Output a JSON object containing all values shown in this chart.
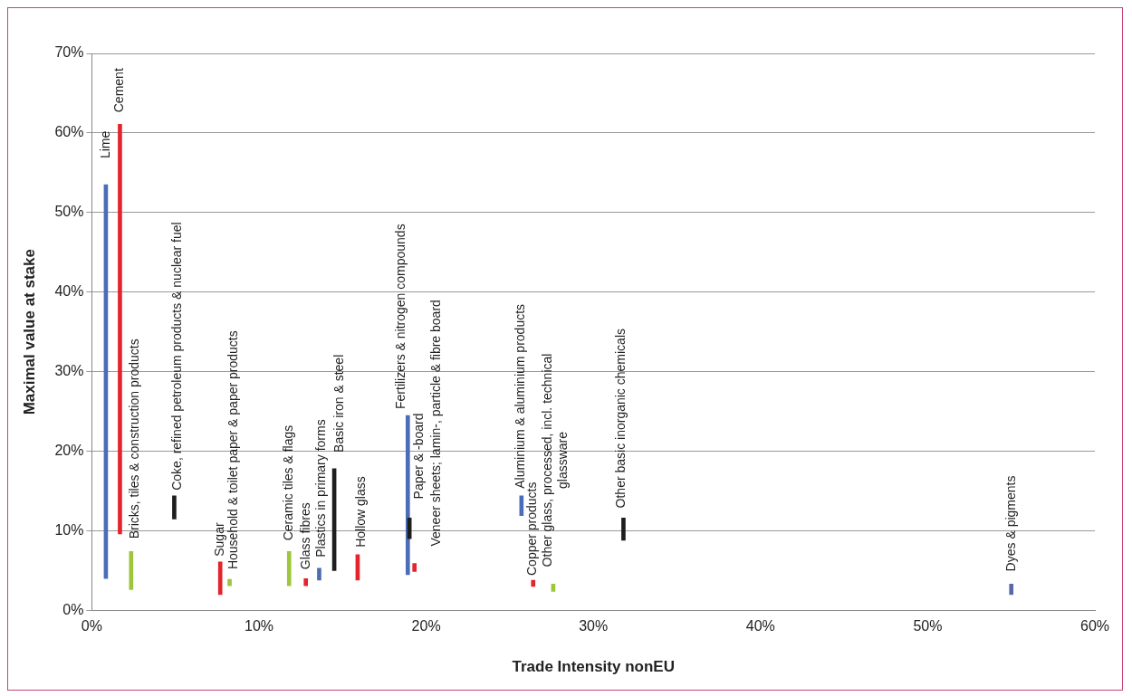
{
  "chart_data": {
    "type": "bar",
    "xlabel": "Trade Intensity nonEU",
    "ylabel": "Maximal value at stake",
    "x": [
      0.84,
      1.68,
      2.35,
      4.93,
      7.68,
      8.24,
      11.8,
      12.8,
      13.6,
      14.5,
      15.9,
      18.9,
      19.0,
      19.3,
      25.7,
      26.4,
      27.6,
      31.8,
      55.0
    ],
    "base": [
      4.0,
      9.6,
      2.6,
      11.5,
      2.0,
      3.1,
      3.1,
      3.1,
      3.8,
      5.0,
      3.8,
      4.5,
      9.0,
      4.9,
      11.9,
      3.0,
      2.4,
      8.8,
      2.0
    ],
    "values": [
      49.5,
      51.5,
      4.8,
      2.9,
      4.1,
      0.8,
      4.3,
      0.9,
      1.5,
      12.8,
      3.2,
      20.0,
      2.6,
      1.0,
      2.5,
      0.8,
      0.9,
      2.8,
      1.3
    ],
    "colors": [
      "#4a6db5",
      "#e3242b",
      "#9ec63c",
      "#1e1e1e",
      "#e3242b",
      "#9ec63c",
      "#9ec63c",
      "#e3242b",
      "#4a6db5",
      "#1e1e1e",
      "#e3242b",
      "#4a6db5",
      "#1e1e1e",
      "#e3242b",
      "#4a6db5",
      "#e3242b",
      "#9ec63c",
      "#1e1e1e",
      "#5b68a8"
    ],
    "xlim": [
      0,
      60
    ],
    "xticks": [
      {
        "value": 0,
        "label": "0%"
      },
      {
        "value": 10,
        "label": "10%"
      },
      {
        "value": 20,
        "label": "20%"
      },
      {
        "value": 30,
        "label": "30%"
      },
      {
        "value": 40,
        "label": "40%"
      },
      {
        "value": 50,
        "label": "50%"
      },
      {
        "value": 60,
        "label": "60%"
      }
    ],
    "ylim": [
      0,
      70
    ],
    "yticks": [
      {
        "value": 0,
        "label": "0%"
      },
      {
        "value": 10,
        "label": "10%"
      },
      {
        "value": 20,
        "label": "20%"
      },
      {
        "value": 30,
        "label": "30%"
      },
      {
        "value": 40,
        "label": "40%"
      },
      {
        "value": 50,
        "label": "50%"
      },
      {
        "value": 60,
        "label": "60%"
      },
      {
        "value": 70,
        "label": "70%"
      }
    ],
    "grid": "y",
    "legend": false,
    "annotations": [
      {
        "text": "Lime",
        "x": 0.84,
        "y": 53.5
      },
      {
        "text": "Cement",
        "x": 1.68,
        "y": 61.1
      },
      {
        "text": "Bricks, tiles & construction products",
        "x": 2.35,
        "y": 7.4
      },
      {
        "text": "Coke, refined petroleum products & nuclear fuel",
        "x": 4.93,
        "y": 14.4
      },
      {
        "text": "Sugar",
        "x": 7.68,
        "y": 6.1
      },
      {
        "text": "Household & toilet paper & paper products",
        "x": 8.24,
        "y": 3.9
      },
      {
        "text": "Ceramic tiles & flags",
        "x": 11.8,
        "y": 7.4
      },
      {
        "text": "Glass fibres",
        "x": 12.8,
        "y": 4.0
      },
      {
        "text": "Plastics in primary forms",
        "x": 13.6,
        "y": 5.3
      },
      {
        "text": "Basic iron & steel",
        "x": 14.5,
        "y": 17.8
      },
      {
        "text": "Hollow glass",
        "x": 15.9,
        "y": 7.0
      },
      {
        "text": "Fertilizers & nitrogen compounds",
        "x": 18.9,
        "y": 24.5
      },
      {
        "text": "Paper & -board",
        "x": 19.0,
        "y": 11.6
      },
      {
        "text": "Veneer sheets; lamin-, particle & fibre board",
        "x": 19.3,
        "y": 5.9
      },
      {
        "text": "Aluminium & aluminium products",
        "x": 25.7,
        "y": 14.4
      },
      {
        "text": "Copper products",
        "x": 26.4,
        "y": 3.8
      },
      {
        "text": "Other glass, processed, incl. technical\nglassware",
        "x": 27.6,
        "y": 3.3
      },
      {
        "text": "Other basic inorganic chemicals",
        "x": 31.8,
        "y": 11.6
      },
      {
        "text": "Dyes & pigments",
        "x": 55.0,
        "y": 3.3
      }
    ]
  }
}
